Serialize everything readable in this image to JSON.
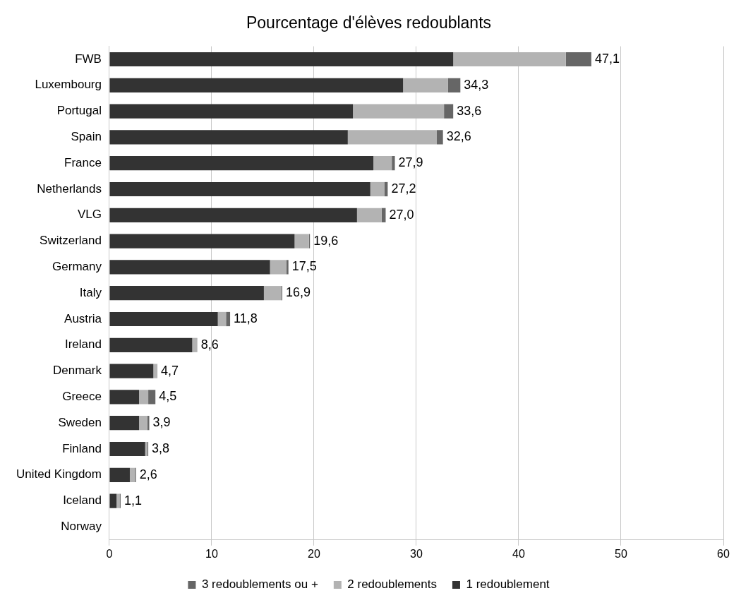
{
  "chart_data": {
    "type": "bar",
    "orientation": "horizontal",
    "stacked": true,
    "title": "Pourcentage d'élèves redoublants",
    "categories": [
      "FWB",
      "Luxembourg",
      "Portugal",
      "Spain",
      "France",
      "Netherlands",
      "VLG",
      "Switzerland",
      "Germany",
      "Italy",
      "Austria",
      "Ireland",
      "Denmark",
      "Greece",
      "Sweden",
      "Finland",
      "United Kingdom",
      "Iceland",
      "Norway"
    ],
    "series": [
      {
        "name": "1 redoublement",
        "color": "#333333",
        "values": [
          33.6,
          28.7,
          23.8,
          23.3,
          25.8,
          25.5,
          24.2,
          18.1,
          15.7,
          15.1,
          10.6,
          8.1,
          4.3,
          2.9,
          2.9,
          3.5,
          2.0,
          0.7,
          0
        ]
      },
      {
        "name": "2 redoublements",
        "color": "#b3b3b3",
        "values": [
          11.0,
          4.4,
          8.9,
          8.7,
          1.8,
          1.4,
          2.4,
          1.4,
          1.6,
          1.7,
          0.8,
          0.5,
          0.4,
          0.9,
          0.8,
          0.2,
          0.5,
          0.3,
          0
        ]
      },
      {
        "name": "3 redoublements ou +",
        "color": "#666666",
        "values": [
          2.5,
          1.2,
          0.9,
          0.6,
          0.3,
          0.3,
          0.4,
          0.1,
          0.2,
          0.1,
          0.4,
          0,
          0,
          0.7,
          0.2,
          0.1,
          0.1,
          0.1,
          0
        ]
      }
    ],
    "totals": [
      "47,1",
      "34,3",
      "33,6",
      "32,6",
      "27,9",
      "27,2",
      "27,0",
      "19,6",
      "17,5",
      "16,9",
      "11,8",
      "8,6",
      "4,7",
      "4,5",
      "3,9",
      "3,8",
      "2,6",
      "1,1",
      null
    ],
    "xlim": [
      0,
      60
    ],
    "xticks": [
      0,
      10,
      20,
      30,
      40,
      50,
      60
    ],
    "grid": "x",
    "legend": "bottom"
  }
}
